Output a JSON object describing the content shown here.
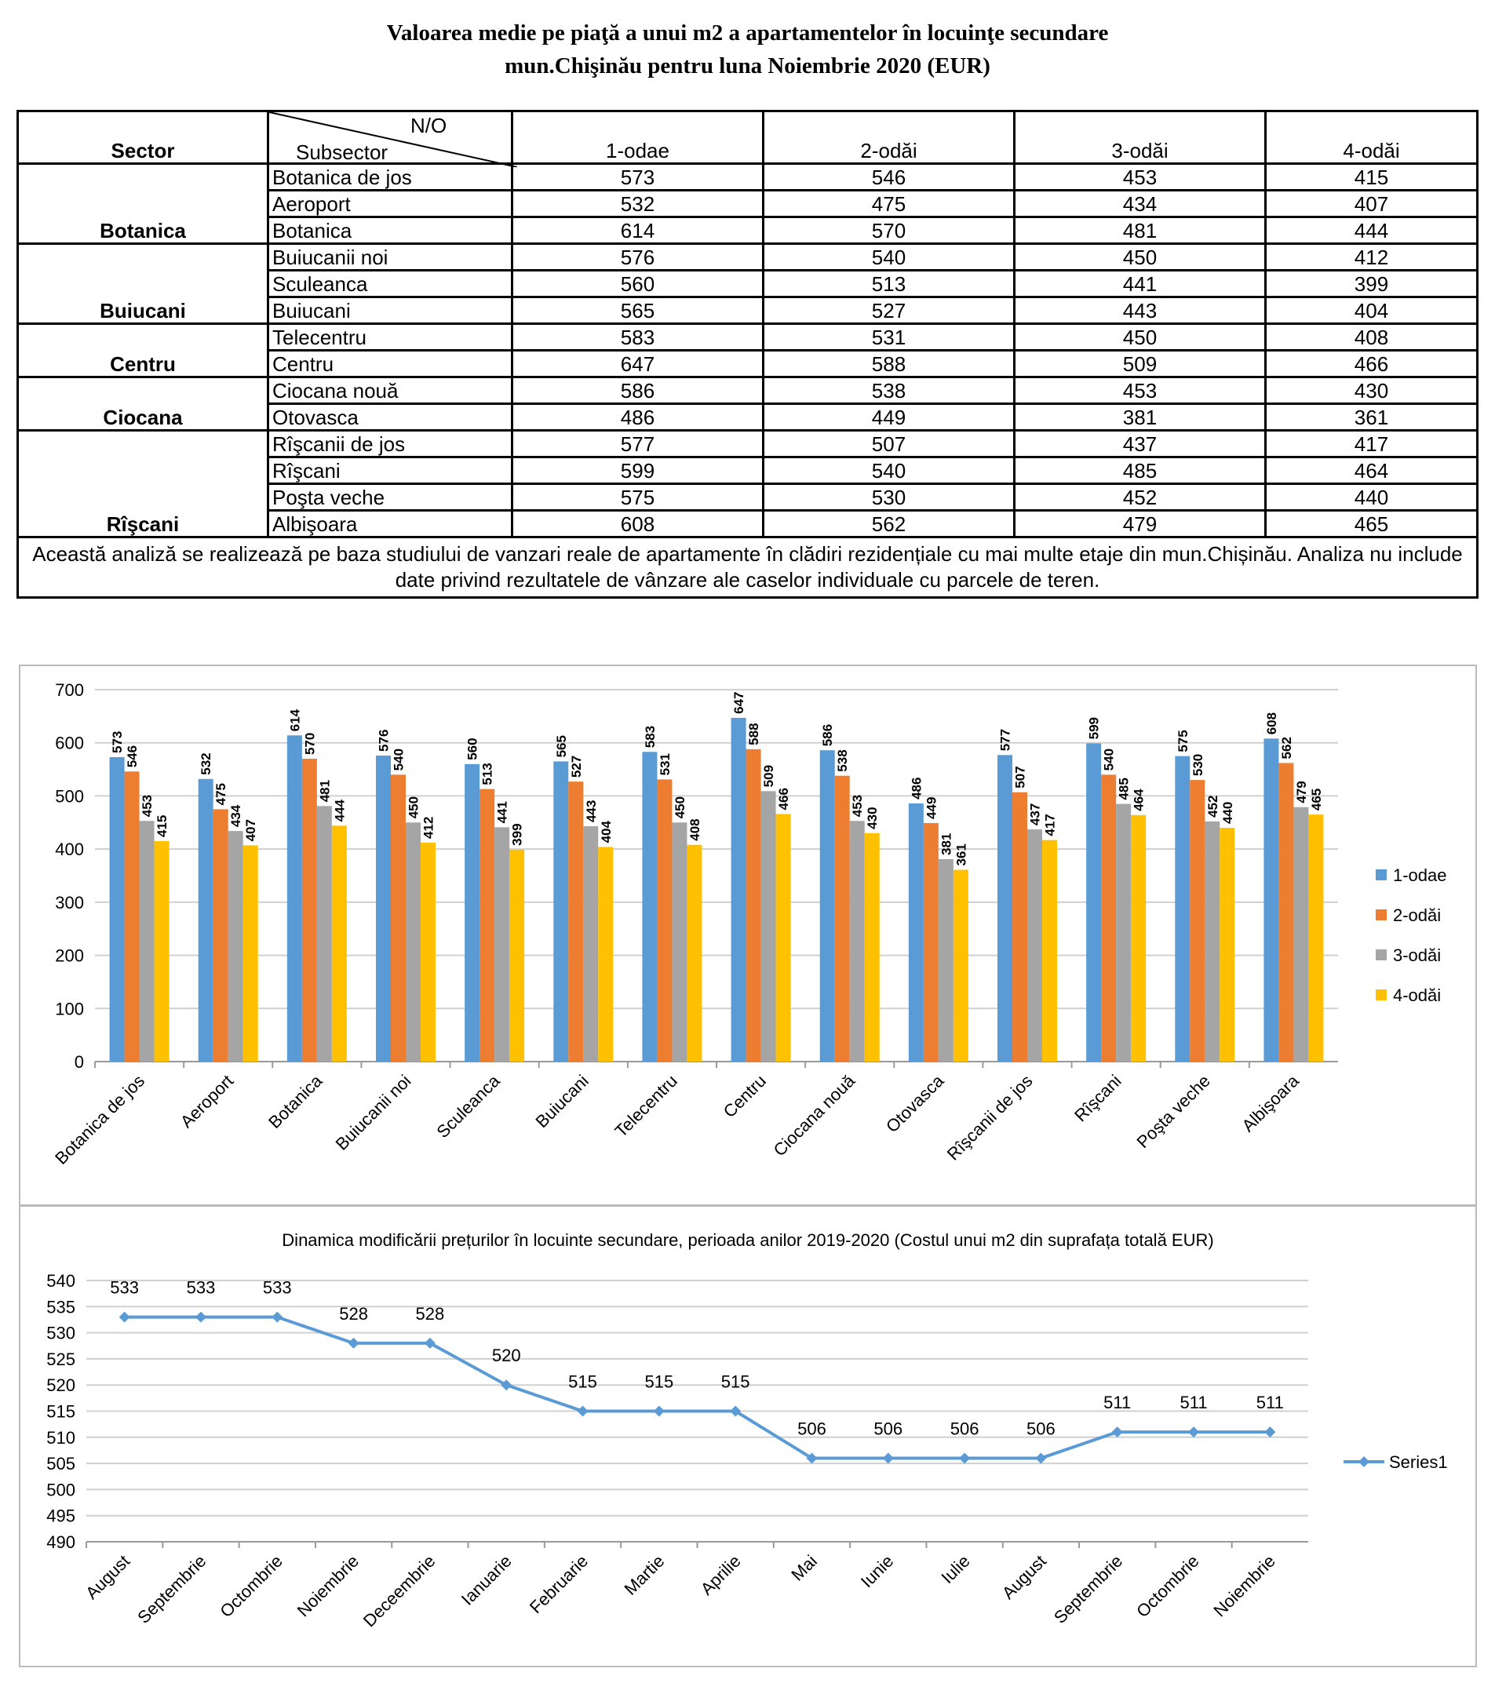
{
  "header": {
    "title_line1": "Valoarea medie pe piaţă a unui m2 a apartamentelor în locuinţe secundare",
    "title_line2": "mun.Chişinău  pentru luna Noiembrie 2020 (EUR)"
  },
  "table": {
    "corner_top": "N/O",
    "corner_bottom": "Subsector",
    "sector_header": "Sector",
    "columns": [
      "1-odae",
      "2-odăi",
      "3-odăi",
      "4-odăi"
    ],
    "groups": [
      {
        "sector": "Botanica",
        "rows": [
          {
            "subsector": "Botanica de jos",
            "values": [
              573,
              546,
              453,
              415
            ]
          },
          {
            "subsector": "Aeroport",
            "values": [
              532,
              475,
              434,
              407
            ]
          },
          {
            "subsector": "Botanica",
            "values": [
              614,
              570,
              481,
              444
            ]
          }
        ]
      },
      {
        "sector": "Buiucani",
        "rows": [
          {
            "subsector": "Buiucanii noi",
            "values": [
              576,
              540,
              450,
              412
            ]
          },
          {
            "subsector": "Sculeanca",
            "values": [
              560,
              513,
              441,
              399
            ]
          },
          {
            "subsector": "Buiucani",
            "values": [
              565,
              527,
              443,
              404
            ]
          }
        ]
      },
      {
        "sector": "Centru",
        "rows": [
          {
            "subsector": "Telecentru",
            "values": [
              583,
              531,
              450,
              408
            ]
          },
          {
            "subsector": "Centru",
            "values": [
              647,
              588,
              509,
              466
            ]
          }
        ]
      },
      {
        "sector": "Ciocana",
        "rows": [
          {
            "subsector": "Ciocana nouă",
            "values": [
              586,
              538,
              453,
              430
            ]
          },
          {
            "subsector": "Otovasca",
            "values": [
              486,
              449,
              381,
              361
            ]
          }
        ]
      },
      {
        "sector": "Rîşcani",
        "rows": [
          {
            "subsector": "Rîşcanii de jos",
            "values": [
              577,
              507,
              437,
              417
            ]
          },
          {
            "subsector": "Rîşcani",
            "values": [
              599,
              540,
              485,
              464
            ]
          },
          {
            "subsector": "Poşta veche",
            "values": [
              575,
              530,
              452,
              440
            ]
          },
          {
            "subsector": "Albişoara",
            "values": [
              608,
              562,
              479,
              465
            ]
          }
        ]
      }
    ],
    "note": "Această analiză se realizează pe baza studiului de vanzari reale de apartamente în clădiri rezidențiale cu mai multe etaje din mun.Chișinău. Analiza nu include date privind rezultatele de vânzare ale caselor individuale cu parcele de teren."
  },
  "chart_data": [
    {
      "type": "bar",
      "categories": [
        "Botanica de jos",
        "Aeroport",
        "Botanica",
        "Buiucanii noi",
        "Sculeanca",
        "Buiucani",
        "Telecentru",
        "Centru",
        "Ciocana nouă",
        "Otovasca",
        "Rîşcanii de jos",
        "Rîşcani",
        "Poşta veche",
        "Albişoara"
      ],
      "series": [
        {
          "name": "1-odae",
          "color": "#5b9bd5",
          "values": [
            573,
            532,
            614,
            576,
            560,
            565,
            583,
            647,
            586,
            486,
            577,
            599,
            575,
            608
          ]
        },
        {
          "name": "2-odăi",
          "color": "#ed7d31",
          "values": [
            546,
            475,
            570,
            540,
            513,
            527,
            531,
            588,
            538,
            449,
            507,
            540,
            530,
            562
          ]
        },
        {
          "name": "3-odăi",
          "color": "#a5a5a5",
          "values": [
            453,
            434,
            481,
            450,
            441,
            443,
            450,
            509,
            453,
            381,
            437,
            485,
            452,
            479
          ]
        },
        {
          "name": "4-odăi",
          "color": "#ffc000",
          "values": [
            415,
            407,
            444,
            412,
            399,
            404,
            408,
            466,
            430,
            361,
            417,
            464,
            440,
            465
          ]
        }
      ],
      "ylim": [
        0,
        700
      ],
      "yticks": [
        0,
        100,
        200,
        300,
        400,
        500,
        600,
        700
      ],
      "grid": true,
      "legend": "right"
    },
    {
      "type": "line",
      "title": "Dinamica modificării prețurilor în locuinte secundare, perioada anilor 2019-2020 (Costul unui m2 din suprafața totală EUR)",
      "categories": [
        "August",
        "Septembrie",
        "Octombrie",
        "Noiembrie",
        "Deceembrie",
        "Ianuarie",
        "Februarie",
        "Martie",
        "Aprilie",
        "Mai",
        "Iunie",
        "Iulie",
        "August",
        "Septembrie",
        "Octombrie",
        "Noiembrie"
      ],
      "series": [
        {
          "name": "Series1",
          "color": "#5b9bd5",
          "values": [
            533,
            533,
            533,
            528,
            528,
            520,
            515,
            515,
            515,
            506,
            506,
            506,
            506,
            511,
            511,
            511
          ]
        }
      ],
      "ylim": [
        490,
        540
      ],
      "yticks": [
        490,
        495,
        500,
        505,
        510,
        515,
        520,
        525,
        530,
        535,
        540
      ],
      "grid": true,
      "legend": "right"
    }
  ]
}
